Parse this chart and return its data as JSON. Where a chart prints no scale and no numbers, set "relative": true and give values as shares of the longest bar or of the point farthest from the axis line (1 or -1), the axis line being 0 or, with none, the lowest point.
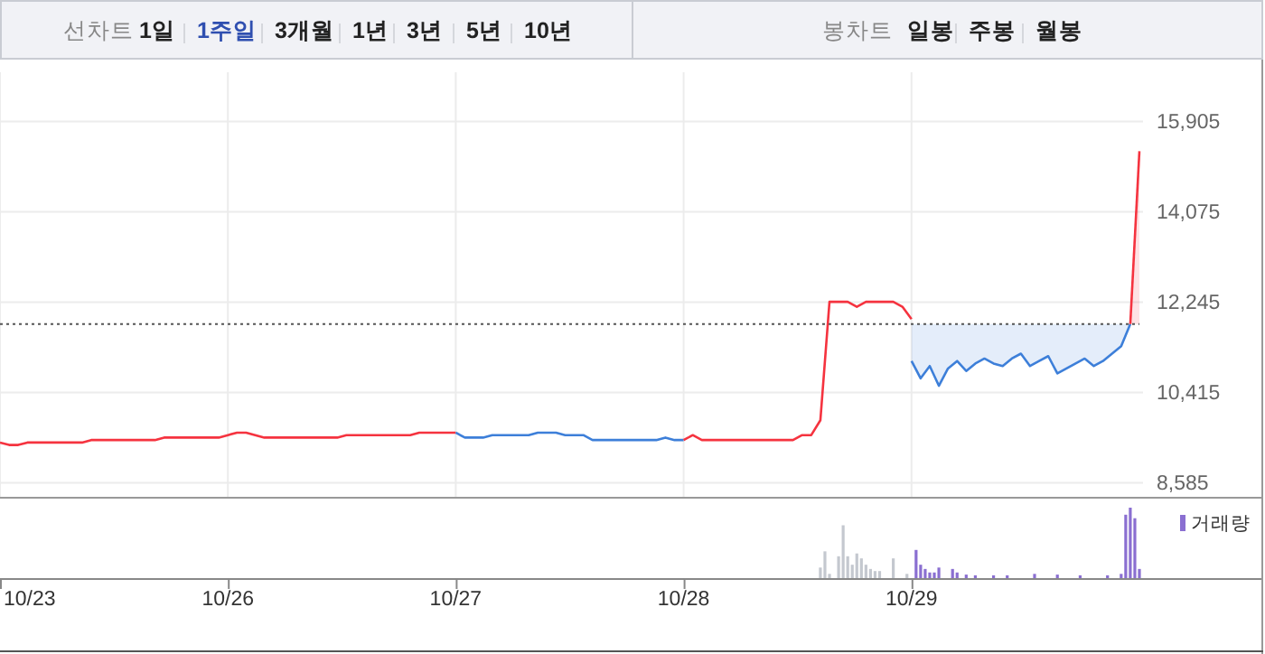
{
  "chart_data": [
    {
      "type": "other",
      "annotations": [
        "선차트",
        "1일",
        "1주일",
        "3개월",
        "1년",
        "3년",
        "5년",
        "10년",
        "봉차트",
        "일봉",
        "주봉",
        "월봉"
      ]
    },
    {
      "type": "line",
      "ylim": [
        8300,
        16900
      ],
      "categories": [
        null,
        null,
        null,
        null,
        null,
        null,
        null,
        null,
        null,
        null,
        null,
        null,
        null,
        null,
        null,
        null,
        null,
        null,
        null,
        null,
        null,
        null,
        null,
        null,
        null,
        null,
        null,
        null,
        null,
        null,
        null,
        null,
        null,
        null,
        null,
        null,
        null,
        null,
        null,
        null,
        null,
        null,
        null,
        null,
        null,
        null,
        null,
        null,
        null,
        null,
        null,
        null,
        null,
        null,
        null,
        null,
        null,
        null,
        null,
        null,
        null,
        null,
        null,
        null,
        null,
        null,
        null,
        null,
        null,
        null,
        null,
        null,
        null,
        null,
        null,
        null,
        null,
        null,
        null,
        null,
        null,
        null,
        null,
        null,
        null,
        null,
        null,
        null,
        null,
        null,
        null,
        null,
        null,
        null,
        null,
        null,
        null,
        null,
        null,
        null,
        null,
        null,
        null,
        null,
        null,
        null,
        null,
        null,
        null,
        null,
        null,
        null,
        null,
        null,
        null,
        null,
        null,
        null,
        null,
        null,
        null,
        null,
        null,
        null,
        null,
        null
      ],
      "yticks": [
        {
          "value": 8585,
          "label": "8,585"
        },
        {
          "value": 10415,
          "label": "10,415"
        },
        {
          "value": 12245,
          "label": "12,245"
        },
        {
          "value": 14075,
          "label": "14,075"
        },
        {
          "value": 15905,
          "label": "15,905"
        }
      ],
      "tick_labels": "y",
      "grid": true,
      "ref_lines": [
        {
          "axis": "y",
          "value": 11800,
          "color": "#555555",
          "line_style": "dotted"
        }
      ],
      "series": [
        {
          "color": "#f5333f",
          "values": [
            9400,
            9350,
            9350,
            9400,
            9400,
            9400,
            9400,
            9400,
            9400,
            9400,
            9450,
            9450,
            9450,
            9450,
            9450,
            9450,
            9450,
            9450,
            9500,
            9500,
            9500,
            9500,
            9500,
            9500,
            9500,
            9550,
            9600,
            9600,
            9550,
            9500,
            9500,
            9500,
            9500,
            9500,
            9500,
            9500,
            9500,
            9500,
            9550,
            9550,
            9550,
            9550,
            9550,
            9550,
            9550,
            9550,
            9600,
            9600,
            9600,
            9600,
            9600,
            null,
            null,
            null,
            null,
            null,
            null,
            null,
            null,
            null,
            null,
            null,
            null,
            null,
            null,
            null,
            null,
            null,
            null,
            null,
            null,
            null,
            null,
            null,
            null,
            null,
            null,
            null,
            null,
            null,
            null,
            null,
            null,
            null,
            null,
            null,
            null,
            null,
            null,
            null,
            null,
            null,
            null,
            null,
            null,
            null,
            null,
            null,
            null,
            null,
            null,
            null,
            null,
            null,
            null,
            null,
            null,
            null,
            null,
            null,
            null,
            null,
            null,
            null,
            null,
            null,
            null,
            null,
            null,
            null,
            null,
            null,
            null,
            null,
            null,
            null
          ]
        },
        {
          "color": "#3d7fd9",
          "values": [
            null,
            null,
            null,
            null,
            null,
            null,
            null,
            null,
            null,
            null,
            null,
            null,
            null,
            null,
            null,
            null,
            null,
            null,
            null,
            null,
            null,
            null,
            null,
            null,
            null,
            null,
            null,
            null,
            null,
            null,
            null,
            null,
            null,
            null,
            null,
            null,
            null,
            null,
            null,
            null,
            null,
            null,
            null,
            null,
            null,
            null,
            null,
            null,
            null,
            null,
            9600,
            9500,
            9500,
            9500,
            9550,
            9550,
            9550,
            9550,
            9550,
            9600,
            9600,
            9600,
            9550,
            9550,
            9550,
            9450,
            9450,
            9450,
            9450,
            9450,
            9450,
            9450,
            9450,
            9500,
            9450,
            9450,
            null,
            null,
            null,
            null,
            null,
            null,
            null,
            null,
            null,
            null,
            null,
            null,
            null,
            null,
            null,
            null,
            null,
            null,
            null,
            null,
            null,
            null,
            null,
            null,
            null,
            null,
            null,
            null,
            null,
            null,
            null,
            null,
            null,
            null,
            null,
            null,
            null,
            null,
            null,
            null,
            null,
            null,
            null,
            null,
            null,
            null,
            null,
            null,
            null,
            null
          ]
        },
        {
          "color": "#f5333f",
          "values": [
            null,
            null,
            null,
            null,
            null,
            null,
            null,
            null,
            null,
            null,
            null,
            null,
            null,
            null,
            null,
            null,
            null,
            null,
            null,
            null,
            null,
            null,
            null,
            null,
            null,
            null,
            null,
            null,
            null,
            null,
            null,
            null,
            null,
            null,
            null,
            null,
            null,
            null,
            null,
            null,
            null,
            null,
            null,
            null,
            null,
            null,
            null,
            null,
            null,
            null,
            null,
            null,
            null,
            null,
            null,
            null,
            null,
            null,
            null,
            null,
            null,
            null,
            null,
            null,
            null,
            null,
            null,
            null,
            null,
            null,
            null,
            null,
            null,
            null,
            null,
            9450,
            9550,
            9450,
            9450,
            9450,
            9450,
            9450,
            9450,
            9450,
            9450,
            9450,
            9450,
            9450,
            9550,
            9550,
            9850,
            12250,
            12250,
            12250,
            12150,
            12250,
            12250,
            12250,
            12250,
            12150,
            11900,
            null,
            null,
            null,
            null,
            null,
            null,
            null,
            null,
            null,
            null,
            null,
            null,
            null,
            null,
            null,
            null,
            null,
            null,
            null,
            null,
            null,
            null,
            null,
            null,
            null
          ]
        },
        {
          "color": "#3d7fd9",
          "lower": [
            null,
            null,
            null,
            null,
            null,
            null,
            null,
            null,
            null,
            null,
            null,
            null,
            null,
            null,
            null,
            null,
            null,
            null,
            null,
            null,
            null,
            null,
            null,
            null,
            null,
            null,
            null,
            null,
            null,
            null,
            null,
            null,
            null,
            null,
            null,
            null,
            null,
            null,
            null,
            null,
            null,
            null,
            null,
            null,
            null,
            null,
            null,
            null,
            null,
            null,
            null,
            null,
            null,
            null,
            null,
            null,
            null,
            null,
            null,
            null,
            null,
            null,
            null,
            null,
            null,
            null,
            null,
            null,
            null,
            null,
            null,
            null,
            null,
            null,
            null,
            null,
            null,
            null,
            null,
            null,
            null,
            null,
            null,
            null,
            null,
            null,
            null,
            null,
            null,
            null,
            null,
            null,
            null,
            null,
            null,
            null,
            null,
            null,
            null,
            null,
            11050,
            10700,
            10950,
            10550,
            10900,
            11050,
            10850,
            11000,
            11100,
            11000,
            10950,
            11100,
            11200,
            10950,
            11050,
            11150,
            10800,
            10900,
            11000,
            11100,
            10950,
            11050,
            11200,
            11350,
            11800,
            null
          ],
          "upper": [
            null,
            null,
            null,
            null,
            null,
            null,
            null,
            null,
            null,
            null,
            null,
            null,
            null,
            null,
            null,
            null,
            null,
            null,
            null,
            null,
            null,
            null,
            null,
            null,
            null,
            null,
            null,
            null,
            null,
            null,
            null,
            null,
            null,
            null,
            null,
            null,
            null,
            null,
            null,
            null,
            null,
            null,
            null,
            null,
            null,
            null,
            null,
            null,
            null,
            null,
            null,
            null,
            null,
            null,
            null,
            null,
            null,
            null,
            null,
            null,
            null,
            null,
            null,
            null,
            null,
            null,
            null,
            null,
            null,
            null,
            null,
            null,
            null,
            null,
            null,
            null,
            null,
            null,
            null,
            null,
            null,
            null,
            null,
            null,
            null,
            null,
            null,
            null,
            null,
            null,
            null,
            null,
            null,
            null,
            null,
            null,
            null,
            null,
            null,
            null,
            11800,
            11800,
            11800,
            11800,
            11800,
            11800,
            11800,
            11800,
            11800,
            11800,
            11800,
            11800,
            11800,
            11800,
            11800,
            11800,
            11800,
            11800,
            11800,
            11800,
            11800,
            11800,
            11800,
            11800,
            11800,
            null
          ],
          "values": [
            null,
            null,
            null,
            null,
            null,
            null,
            null,
            null,
            null,
            null,
            null,
            null,
            null,
            null,
            null,
            null,
            null,
            null,
            null,
            null,
            null,
            null,
            null,
            null,
            null,
            null,
            null,
            null,
            null,
            null,
            null,
            null,
            null,
            null,
            null,
            null,
            null,
            null,
            null,
            null,
            null,
            null,
            null,
            null,
            null,
            null,
            null,
            null,
            null,
            null,
            null,
            null,
            null,
            null,
            null,
            null,
            null,
            null,
            null,
            null,
            null,
            null,
            null,
            null,
            null,
            null,
            null,
            null,
            null,
            null,
            null,
            null,
            null,
            null,
            null,
            null,
            null,
            null,
            null,
            null,
            null,
            null,
            null,
            null,
            null,
            null,
            null,
            null,
            null,
            null,
            null,
            null,
            null,
            null,
            null,
            null,
            null,
            null,
            null,
            null,
            11050,
            10700,
            10950,
            10550,
            10900,
            11050,
            10850,
            11000,
            11100,
            11000,
            10950,
            11100,
            11200,
            10950,
            11050,
            11150,
            10800,
            10900,
            11000,
            11100,
            10950,
            11050,
            11200,
            11350,
            11800,
            null
          ]
        },
        {
          "type": "area",
          "color": "#f5333f",
          "values": [
            null,
            null,
            null,
            null,
            null,
            null,
            null,
            null,
            null,
            null,
            null,
            null,
            null,
            null,
            null,
            null,
            null,
            null,
            null,
            null,
            null,
            null,
            null,
            null,
            null,
            null,
            null,
            null,
            null,
            null,
            null,
            null,
            null,
            null,
            null,
            null,
            null,
            null,
            null,
            null,
            null,
            null,
            null,
            null,
            null,
            null,
            null,
            null,
            null,
            null,
            null,
            null,
            null,
            null,
            null,
            null,
            null,
            null,
            null,
            null,
            null,
            null,
            null,
            null,
            null,
            null,
            null,
            null,
            null,
            null,
            null,
            null,
            null,
            null,
            null,
            null,
            null,
            null,
            null,
            null,
            null,
            null,
            null,
            null,
            null,
            null,
            null,
            null,
            null,
            null,
            null,
            null,
            null,
            null,
            null,
            null,
            null,
            null,
            null,
            null,
            null,
            null,
            null,
            null,
            null,
            null,
            null,
            null,
            null,
            null,
            null,
            null,
            null,
            null,
            null,
            null,
            null,
            null,
            null,
            null,
            null,
            null,
            null,
            null,
            11800,
            15300
          ]
        }
      ]
    },
    {
      "type": "bar",
      "relative": true,
      "tick_labels": "x",
      "legend": "top right",
      "categories": [
        "10/23",
        null,
        null,
        null,
        null,
        null,
        null,
        null,
        null,
        null,
        null,
        null,
        null,
        null,
        null,
        null,
        null,
        null,
        null,
        null,
        null,
        null,
        null,
        null,
        null,
        null,
        null,
        null,
        null,
        null,
        null,
        null,
        null,
        null,
        null,
        null,
        null,
        null,
        null,
        null,
        null,
        null,
        null,
        null,
        null,
        null,
        null,
        null,
        null,
        null,
        "10/26",
        null,
        null,
        null,
        null,
        null,
        null,
        null,
        null,
        null,
        null,
        null,
        null,
        null,
        null,
        null,
        null,
        null,
        null,
        null,
        null,
        null,
        null,
        null,
        null,
        null,
        null,
        null,
        null,
        null,
        null,
        null,
        null,
        null,
        null,
        null,
        null,
        null,
        null,
        null,
        null,
        null,
        null,
        null,
        null,
        null,
        null,
        null,
        null,
        null,
        "10/27",
        null,
        null,
        null,
        null,
        null,
        null,
        null,
        null,
        null,
        null,
        null,
        null,
        null,
        null,
        null,
        null,
        null,
        null,
        null,
        null,
        null,
        null,
        null,
        null,
        null,
        null,
        null,
        null,
        null,
        null,
        null,
        null,
        null,
        null,
        null,
        null,
        null,
        null,
        null,
        null,
        null,
        null,
        null,
        null,
        null,
        null,
        null,
        null,
        null,
        "10/28",
        null,
        null,
        null,
        null,
        null,
        null,
        null,
        null,
        null,
        null,
        null,
        null,
        null,
        null,
        null,
        null,
        null,
        null,
        null,
        null,
        null,
        null,
        null,
        null,
        null,
        null,
        null,
        null,
        null,
        null,
        null,
        null,
        null,
        null,
        null,
        null,
        null,
        null,
        null,
        null,
        null,
        null,
        null,
        null,
        null,
        null,
        null,
        null,
        null,
        "10/29",
        null,
        null,
        null,
        null,
        null,
        null,
        null,
        null,
        null,
        null,
        null,
        null,
        null,
        null,
        null,
        null,
        null,
        null,
        null,
        null,
        null,
        null,
        null,
        null,
        null,
        null,
        null,
        null,
        null,
        null,
        null,
        null,
        null,
        null,
        null,
        null,
        null,
        null,
        null,
        null,
        null,
        null,
        null,
        null,
        null,
        null,
        null,
        null,
        null,
        null
      ],
      "series": [
        {
          "color": "#c4c8cf",
          "values": [
            null,
            null,
            null,
            null,
            null,
            null,
            null,
            null,
            null,
            null,
            null,
            null,
            null,
            null,
            null,
            null,
            null,
            null,
            null,
            null,
            null,
            null,
            null,
            null,
            null,
            null,
            null,
            null,
            null,
            null,
            null,
            null,
            null,
            null,
            null,
            null,
            null,
            null,
            null,
            null,
            null,
            null,
            null,
            null,
            null,
            null,
            null,
            null,
            null,
            null,
            null,
            null,
            null,
            null,
            null,
            null,
            null,
            null,
            null,
            null,
            null,
            null,
            null,
            null,
            null,
            null,
            null,
            null,
            null,
            null,
            null,
            null,
            null,
            null,
            null,
            null,
            null,
            null,
            null,
            null,
            null,
            null,
            null,
            null,
            null,
            null,
            null,
            null,
            null,
            null,
            null,
            null,
            null,
            null,
            null,
            null,
            null,
            null,
            null,
            null,
            null,
            null,
            null,
            null,
            null,
            null,
            null,
            null,
            null,
            null,
            null,
            null,
            null,
            null,
            null,
            null,
            null,
            null,
            null,
            null,
            null,
            null,
            null,
            null,
            null,
            null,
            null,
            null,
            null,
            null,
            null,
            null,
            null,
            null,
            null,
            null,
            null,
            null,
            null,
            null,
            null,
            null,
            null,
            null,
            null,
            null,
            null,
            null,
            null,
            null,
            null,
            null,
            null,
            null,
            null,
            null,
            null,
            null,
            null,
            null,
            null,
            null,
            null,
            null,
            null,
            null,
            null,
            null,
            null,
            null,
            null,
            null,
            null,
            null,
            null,
            null,
            null,
            null,
            null,
            null,
            0.15,
            0.38,
            0.06,
            null,
            0.31,
            0.75,
            0.31,
            0.19,
            0.35,
            0.28,
            0.19,
            0.13,
            0.1,
            0.1,
            null,
            null,
            0.28,
            null,
            null,
            0.06,
            null,
            null,
            null,
            null,
            null,
            null,
            null,
            null,
            null,
            null,
            null,
            null,
            null,
            null,
            null,
            null,
            null,
            null,
            null,
            null,
            null,
            null,
            null,
            null,
            null,
            null,
            null,
            null,
            null,
            null,
            null,
            null,
            null,
            null,
            null,
            null,
            null,
            null,
            null,
            null,
            null,
            null,
            null,
            null,
            null,
            null,
            null,
            null,
            null,
            null,
            null
          ]
        },
        {
          "name": "거래량",
          "color": "#8a6fd1",
          "values": [
            null,
            null,
            null,
            null,
            null,
            null,
            null,
            null,
            null,
            null,
            null,
            null,
            null,
            null,
            null,
            null,
            null,
            null,
            null,
            null,
            null,
            null,
            null,
            null,
            null,
            null,
            null,
            null,
            null,
            null,
            null,
            null,
            null,
            null,
            null,
            null,
            null,
            null,
            null,
            null,
            null,
            null,
            null,
            null,
            null,
            null,
            null,
            null,
            null,
            null,
            null,
            null,
            null,
            null,
            null,
            null,
            null,
            null,
            null,
            null,
            null,
            null,
            null,
            null,
            null,
            null,
            null,
            null,
            null,
            null,
            null,
            null,
            null,
            null,
            null,
            null,
            null,
            null,
            null,
            null,
            null,
            null,
            null,
            null,
            null,
            null,
            null,
            null,
            null,
            null,
            null,
            null,
            null,
            null,
            null,
            null,
            null,
            null,
            null,
            null,
            null,
            null,
            null,
            null,
            null,
            null,
            null,
            null,
            null,
            null,
            null,
            null,
            null,
            null,
            null,
            null,
            null,
            null,
            null,
            null,
            null,
            null,
            null,
            null,
            null,
            null,
            null,
            null,
            null,
            null,
            null,
            null,
            null,
            null,
            null,
            null,
            null,
            null,
            null,
            null,
            null,
            null,
            null,
            null,
            null,
            null,
            null,
            null,
            null,
            null,
            null,
            null,
            null,
            null,
            null,
            null,
            null,
            null,
            null,
            null,
            null,
            null,
            null,
            null,
            null,
            null,
            null,
            null,
            null,
            null,
            null,
            null,
            null,
            null,
            null,
            null,
            null,
            null,
            null,
            null,
            null,
            null,
            null,
            null,
            null,
            null,
            null,
            null,
            null,
            null,
            null,
            null,
            null,
            null,
            null,
            null,
            null,
            null,
            null,
            null,
            null,
            0.4,
            0.19,
            0.13,
            0.08,
            0.08,
            0.15,
            null,
            null,
            0.13,
            0.08,
            null,
            0.05,
            null,
            0.04,
            null,
            null,
            null,
            0.04,
            null,
            null,
            0.04,
            null,
            null,
            null,
            null,
            null,
            0.06,
            null,
            null,
            null,
            null,
            0.05,
            null,
            null,
            null,
            null,
            0.04,
            null,
            null,
            null,
            null,
            null,
            0.04,
            null,
            null,
            0.06,
            0.9,
            1,
            0.85,
            0.13
          ]
        }
      ]
    }
  ]
}
